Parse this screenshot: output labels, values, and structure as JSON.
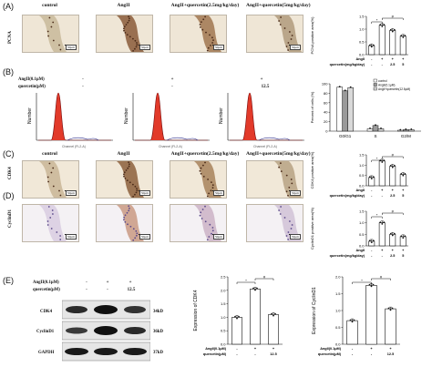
{
  "panels": {
    "A": {
      "label": "(A)",
      "stain": "PCNA"
    },
    "B": {
      "label": "(B)"
    },
    "C": {
      "label": "(C)",
      "stain": "CDK4"
    },
    "D": {
      "label": "(D)",
      "stain": "CyclinD1"
    },
    "E": {
      "label": "(E)"
    }
  },
  "groups_invivo": [
    "control",
    "AngII",
    "AngII+quercetin(2.5mg/kg/day)",
    "AngII+quercetin(5mg/kg/day)"
  ],
  "scale_bar": "50μm",
  "flow": {
    "row1": "AngII(0.1μM)",
    "row2": "quercetin(μM)",
    "conds": [
      {
        "angii": "-",
        "quer": "-"
      },
      {
        "angii": "+",
        "quer": "-"
      },
      {
        "angii": "+",
        "quer": "12.5"
      }
    ],
    "ylabel": "Number",
    "xlabel": "Channel (FL2-A)"
  },
  "invivo_axis": {
    "row1": "AngII",
    "row2": "quercetin(mg/kg/day)",
    "row1_vals": [
      "-",
      "+",
      "+",
      "+"
    ],
    "row2_vals": [
      "-",
      "-",
      "2.5",
      "5"
    ]
  },
  "western": {
    "row1": "AngII(0.1μM)",
    "row2": "quercetin(μM)",
    "row1_vals": [
      "-",
      "+",
      "+"
    ],
    "row2_vals": [
      "-",
      "-",
      "12.5"
    ],
    "bands": [
      {
        "name": "CDK4",
        "kd": "34kD"
      },
      {
        "name": "CyclinD1",
        "kd": "36kD"
      },
      {
        "name": "GAPDH",
        "kd": "37kD"
      }
    ]
  },
  "sig": {
    "star": "*",
    "hash": "#"
  },
  "chart_data": [
    {
      "panel": "A",
      "type": "bar",
      "ylabel": "PCNA positive area(%)",
      "ylim": [
        0,
        1.5
      ],
      "yticks": [
        "0.0",
        "0.5",
        "1.0",
        "1.5"
      ],
      "categories": [
        "-/-",
        "+/-",
        "+/2.5",
        "+/5"
      ],
      "values": [
        0.35,
        1.15,
        0.95,
        0.72
      ]
    },
    {
      "panel": "B",
      "type": "bar",
      "ylabel": "Percent of cells (%)",
      "ylim": [
        0,
        100
      ],
      "yticks": [
        "0",
        "20",
        "40",
        "60",
        "80",
        "100"
      ],
      "categories": [
        "G0/G1",
        "S",
        "G2/M"
      ],
      "legend": [
        "control",
        "AngII(0.1μM)",
        "AngII+quercetin(12.5μM)"
      ],
      "series": [
        {
          "name": "control",
          "values": [
            93,
            5,
            2
          ]
        },
        {
          "name": "AngII(0.1μM)",
          "values": [
            85,
            12,
            3
          ]
        },
        {
          "name": "AngII+quercetin(12.5μM)",
          "values": [
            92,
            5,
            3
          ]
        }
      ]
    },
    {
      "panel": "C",
      "type": "bar",
      "ylabel": "CDK4 positive area(%)",
      "ylim": [
        0,
        1.5
      ],
      "yticks": [
        "0.0",
        "0.5",
        "1.0",
        "1.5"
      ],
      "categories": [
        "-/-",
        "+/-",
        "+/2.5",
        "+/5"
      ],
      "values": [
        0.4,
        1.2,
        0.95,
        0.55
      ]
    },
    {
      "panel": "D",
      "type": "bar",
      "ylabel": "CyclinD1 positive area(%)",
      "ylim": [
        0,
        1.5
      ],
      "yticks": [
        "0.0",
        "0.5",
        "1.0",
        "1.5"
      ],
      "categories": [
        "-/-",
        "+/-",
        "+/2.5",
        "+/5"
      ],
      "values": [
        0.2,
        1.0,
        0.5,
        0.4
      ]
    },
    {
      "panel": "E",
      "type": "bar",
      "ylabel": "Expression of CDK4",
      "ylim": [
        0,
        2.5
      ],
      "yticks": [
        "0.0",
        "0.5",
        "1.0",
        "1.5",
        "2.0",
        "2.5"
      ],
      "categories": [
        "-/-",
        "+/-",
        "+/12.5"
      ],
      "values": [
        1.0,
        2.05,
        1.1
      ]
    },
    {
      "panel": "E",
      "type": "bar",
      "ylabel": "Expression of CyclinD1",
      "ylim": [
        0,
        2.0
      ],
      "yticks": [
        "0.0",
        "0.5",
        "1.0",
        "1.5",
        "2.0"
      ],
      "categories": [
        "-/-",
        "+/-",
        "+/12.5"
      ],
      "values": [
        0.7,
        1.75,
        1.05
      ]
    }
  ]
}
